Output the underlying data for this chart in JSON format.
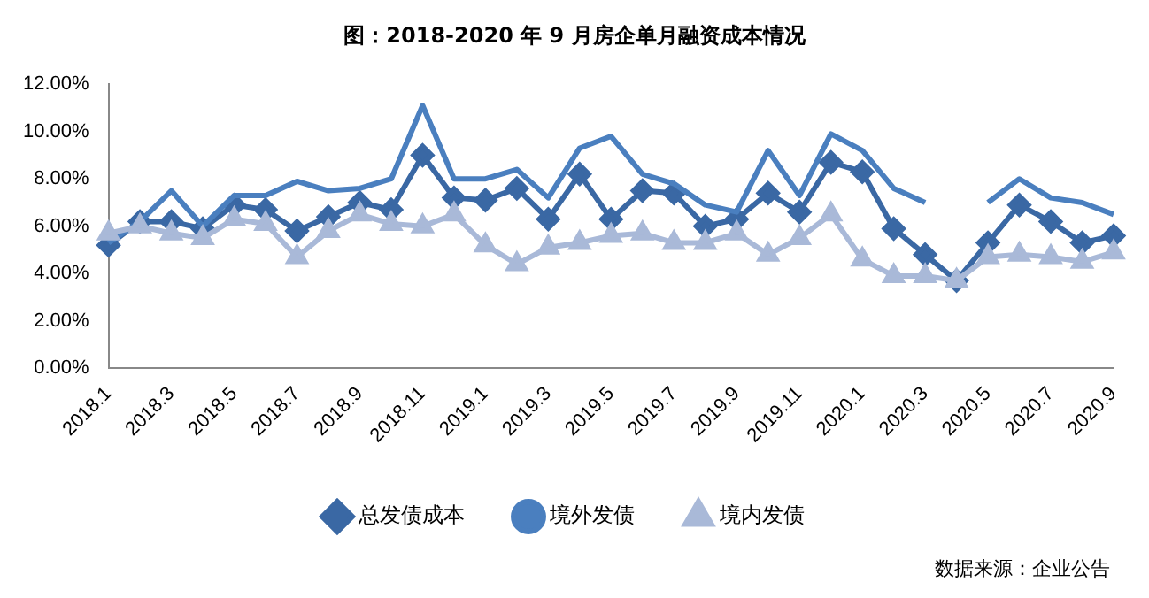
{
  "chart_data": {
    "type": "line",
    "title": "图：2018-2020 年 9 月房企单月融资成本情况",
    "categories": [
      "2018.1",
      null,
      "2018.3",
      null,
      "2018.5",
      null,
      "2018.7",
      null,
      "2018.9",
      null,
      "2018.11",
      null,
      "2019.1",
      null,
      "2019.3",
      null,
      "2019.5",
      null,
      "2019.7",
      null,
      "2019.9",
      null,
      "2019.11",
      null,
      "2020.1",
      null,
      "2020.3",
      null,
      "2020.5",
      null,
      "2020.7",
      null,
      "2020.9"
    ],
    "series": [
      {
        "name": "总发债成本",
        "color": "#3a68a4",
        "marker": "diamond",
        "values": [
          5.2,
          6.2,
          6.2,
          5.9,
          6.9,
          6.7,
          5.8,
          6.4,
          7.0,
          6.7,
          9.0,
          7.2,
          7.1,
          7.6,
          6.3,
          8.2,
          6.3,
          7.5,
          7.4,
          6.0,
          6.3,
          7.4,
          6.6,
          8.7,
          8.3,
          5.9,
          4.8,
          3.7,
          5.3,
          6.9,
          6.2,
          5.3,
          5.6
        ]
      },
      {
        "name": "境外发债",
        "color": "#4a7fbf",
        "marker": "none",
        "values": [
          5.3,
          6.2,
          7.5,
          6.0,
          7.3,
          7.3,
          7.9,
          7.5,
          7.6,
          8.0,
          11.1,
          8.0,
          8.0,
          8.4,
          7.2,
          9.3,
          9.8,
          8.2,
          7.8,
          6.9,
          6.6,
          9.2,
          7.3,
          9.9,
          9.2,
          7.6,
          7.0,
          null,
          7.0,
          8.0,
          7.2,
          7.0,
          6.5
        ]
      },
      {
        "name": "境内发债",
        "color": "#a9b9d8",
        "marker": "triangle",
        "values": [
          5.7,
          6.0,
          5.7,
          5.5,
          6.3,
          6.1,
          4.7,
          5.8,
          6.5,
          6.1,
          6.0,
          6.5,
          5.2,
          4.4,
          5.1,
          5.3,
          5.6,
          5.7,
          5.3,
          5.3,
          5.7,
          4.8,
          5.5,
          6.5,
          4.6,
          3.9,
          3.9,
          3.7,
          4.7,
          4.8,
          4.7,
          4.5,
          4.9
        ]
      }
    ],
    "ylim": [
      0,
      12
    ],
    "yticks": [
      {
        "value": 0,
        "label": "0.00%"
      },
      {
        "value": 2,
        "label": "2.00%"
      },
      {
        "value": 4,
        "label": "4.00%"
      },
      {
        "value": 6,
        "label": "6.00%"
      },
      {
        "value": 8,
        "label": "8.00%"
      },
      {
        "value": 10,
        "label": "10.00%"
      },
      {
        "value": 12,
        "label": "12.00%"
      }
    ],
    "grid": false,
    "legend": "bottom",
    "annotations": [
      "数据来源：企业公告"
    ]
  }
}
